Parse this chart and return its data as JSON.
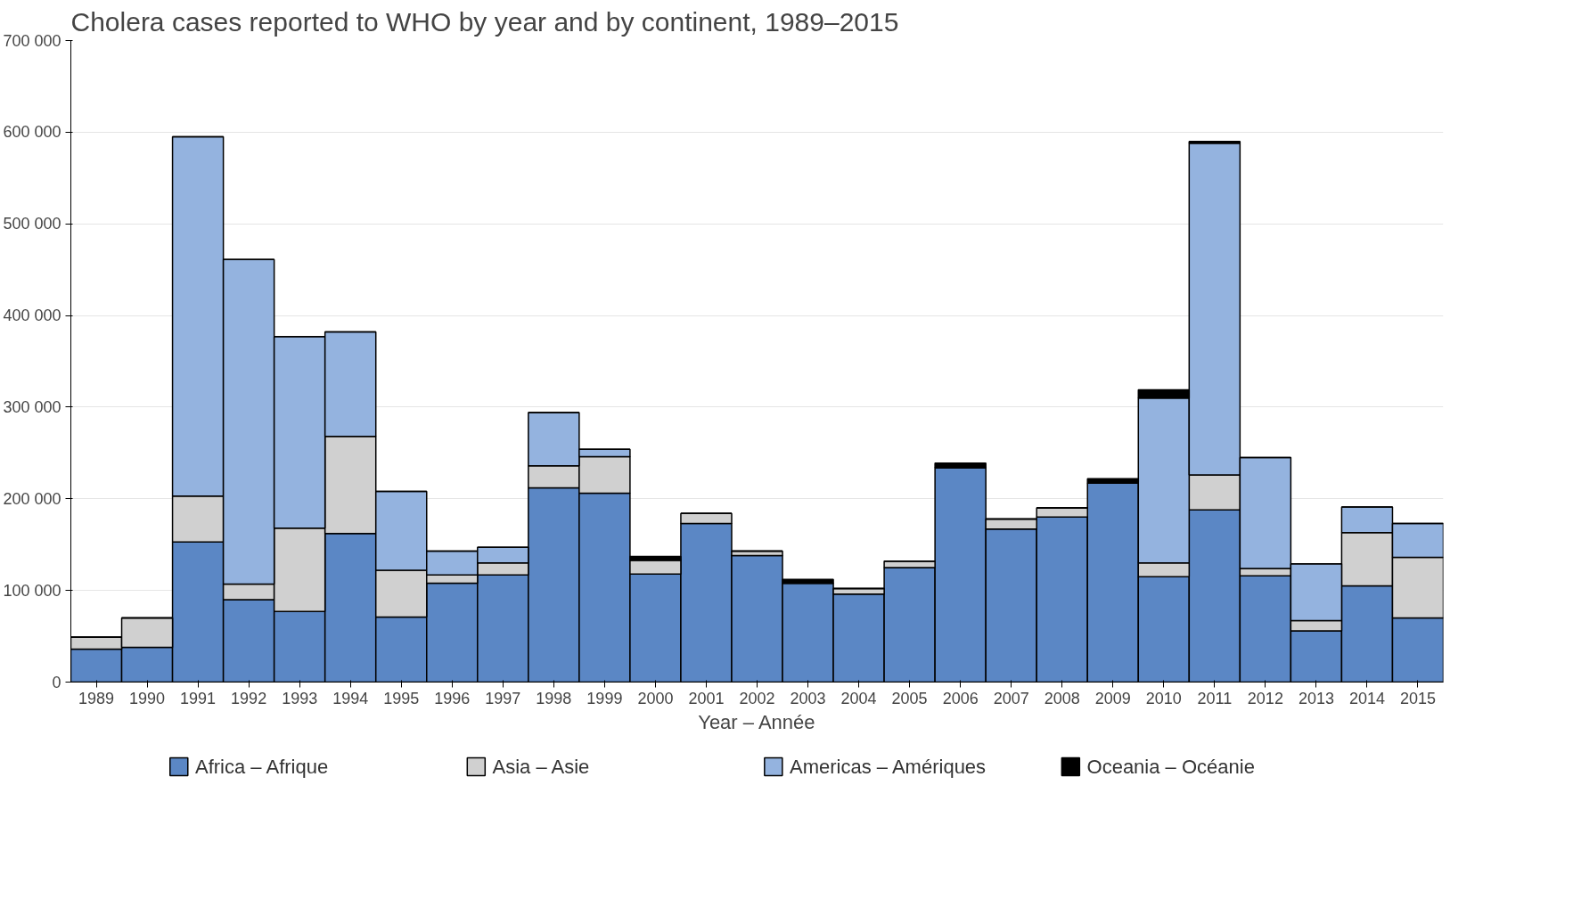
{
  "chart_data": {
    "type": "bar",
    "stacked": true,
    "title": "Cholera cases reported to WHO by year and by continent, 1989–2015",
    "xlabel": "Year – Année",
    "categories": [
      "1989",
      "1990",
      "1991",
      "1992",
      "1993",
      "1994",
      "1995",
      "1996",
      "1997",
      "1998",
      "1999",
      "2000",
      "2001",
      "2002",
      "2003",
      "2004",
      "2005",
      "2006",
      "2007",
      "2008",
      "2009",
      "2010",
      "2011",
      "2012",
      "2013",
      "2014",
      "2015"
    ],
    "series": [
      {
        "name": "Africa – Afrique",
        "color": "#5b87c5",
        "values": [
          36000,
          38000,
          153000,
          90000,
          77000,
          162000,
          71000,
          108000,
          117000,
          212000,
          206000,
          118000,
          173000,
          138000,
          108000,
          96000,
          125000,
          234000,
          167000,
          180000,
          217000,
          115000,
          188000,
          116000,
          56000,
          105000,
          70000
        ]
      },
      {
        "name": "Asia – Asie",
        "color": "#d0d0d0",
        "values": [
          13000,
          32000,
          50000,
          17000,
          91000,
          106000,
          51000,
          9000,
          13000,
          24000,
          40000,
          15000,
          11000,
          5000,
          0,
          6000,
          7000,
          0,
          11000,
          10000,
          0,
          15000,
          38000,
          8000,
          11000,
          58000,
          66000
        ]
      },
      {
        "name": "Americas – Amériques",
        "color": "#94b3df",
        "values": [
          0,
          0,
          392000,
          354000,
          209000,
          114000,
          86000,
          26000,
          17000,
          58000,
          8000,
          0,
          0,
          0,
          0,
          0,
          0,
          0,
          0,
          0,
          0,
          180000,
          362000,
          121000,
          62000,
          28000,
          37000
        ]
      },
      {
        "name": "Oceania – Océanie",
        "color": "#000000",
        "values": [
          0,
          0,
          0,
          0,
          0,
          0,
          0,
          0,
          0,
          0,
          0,
          4000,
          0,
          0,
          4000,
          0,
          0,
          5000,
          0,
          0,
          5000,
          9000,
          2000,
          0,
          0,
          0,
          0
        ]
      }
    ],
    "ylim": [
      0,
      700000
    ],
    "yticks": [
      {
        "value": 0,
        "label": "0"
      },
      {
        "value": 100000,
        "label": "100 000"
      },
      {
        "value": 200000,
        "label": "200 000"
      },
      {
        "value": 300000,
        "label": "300 000"
      },
      {
        "value": 400000,
        "label": "400 000"
      },
      {
        "value": 500000,
        "label": "500 000"
      },
      {
        "value": 600000,
        "label": "600 000"
      },
      {
        "value": 700000,
        "label": "700 000"
      }
    ],
    "grid": "y",
    "legend": "bottom"
  }
}
